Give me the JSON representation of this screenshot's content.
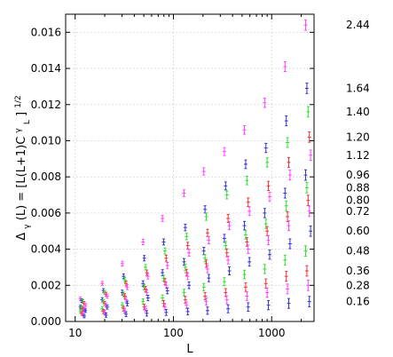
{
  "chart_data": {
    "type": "scatter",
    "title": "",
    "xlabel": "L",
    "ylabel_parts": {
      "main": "Δ",
      "sub1": "γ",
      "mid": "(L) = [L(L+1)C",
      "sup2": "γ",
      "sub2": "L",
      "close": "]",
      "sup3": "1/2"
    },
    "x_scale": "log",
    "xlim": [
      8,
      2700
    ],
    "ylim": [
      0,
      0.017
    ],
    "grid": true,
    "x_ticks": [
      {
        "value": 10,
        "label": "10"
      },
      {
        "value": 100,
        "label": "100"
      },
      {
        "value": 1000,
        "label": "1000"
      }
    ],
    "y_ticks": [
      {
        "value": 0,
        "label": "0.000"
      },
      {
        "value": 0.002,
        "label": "0.002"
      },
      {
        "value": 0.004,
        "label": "0.004"
      },
      {
        "value": 0.006,
        "label": "0.006"
      },
      {
        "value": 0.008,
        "label": "0.008"
      },
      {
        "value": 0.01,
        "label": "0.010"
      },
      {
        "value": 0.012,
        "label": "0.012"
      },
      {
        "value": 0.014,
        "label": "0.014"
      },
      {
        "value": 0.016,
        "label": "0.016"
      }
    ],
    "series": [
      {
        "name": "2.44",
        "color": "#ff44ff",
        "label_y": 0.0164,
        "x": [
          12,
          20,
          32,
          52,
          82,
          136,
          216,
          350,
          560,
          900,
          1450,
          2350
        ],
        "y": [
          0.00125,
          0.0021,
          0.0032,
          0.0044,
          0.0057,
          0.0071,
          0.0083,
          0.0094,
          0.0106,
          0.0121,
          0.0141,
          0.0164
        ]
      },
      {
        "name": "1.64",
        "color": "#3333cc",
        "label_y": 0.0129,
        "x": [
          12,
          20,
          32,
          52,
          82,
          136,
          216,
          350,
          560,
          900,
          1450,
          2350
        ],
        "y": [
          0.00115,
          0.0017,
          0.0025,
          0.0035,
          0.0044,
          0.0052,
          0.0062,
          0.0075,
          0.0087,
          0.0096,
          0.0111,
          0.0129
        ]
      },
      {
        "name": "1.40",
        "color": "#33dd33",
        "label_y": 0.0116,
        "x": [
          12,
          20,
          32,
          52,
          82,
          136,
          216,
          350,
          560,
          900,
          1450,
          2350
        ],
        "y": [
          0.0011,
          0.0016,
          0.0023,
          0.003,
          0.0039,
          0.0047,
          0.0058,
          0.007,
          0.0078,
          0.0088,
          0.0099,
          0.0116
        ]
      },
      {
        "name": "1.20",
        "color": "#ee3333",
        "label_y": 0.0102,
        "x": [
          12,
          20,
          32,
          52,
          82,
          136,
          216,
          350,
          560,
          900,
          1450,
          2350
        ],
        "y": [
          0.001,
          0.0015,
          0.0021,
          0.0027,
          0.0035,
          0.0042,
          0.0049,
          0.0057,
          0.0066,
          0.0075,
          0.0088,
          0.0102
        ]
      },
      {
        "name": "1.12",
        "color": "#ff44ff",
        "label_y": 0.0092,
        "x": [
          12,
          20,
          32,
          52,
          82,
          136,
          216,
          350,
          560,
          900,
          1450,
          2350
        ],
        "y": [
          0.0009,
          0.0014,
          0.0019,
          0.0025,
          0.0031,
          0.0038,
          0.0045,
          0.0053,
          0.0061,
          0.0069,
          0.0081,
          0.0092
        ]
      },
      {
        "name": "0.96",
        "color": "#3333cc",
        "label_y": 0.0081,
        "x": [
          12,
          20,
          32,
          52,
          82,
          136,
          216,
          350,
          560,
          900,
          1450,
          2350
        ],
        "y": [
          0.0008,
          0.0012,
          0.0016,
          0.0021,
          0.0027,
          0.0033,
          0.0039,
          0.0046,
          0.0053,
          0.006,
          0.0071,
          0.0081
        ]
      },
      {
        "name": "0.88",
        "color": "#33dd33",
        "label_y": 0.0074,
        "x": [
          12,
          20,
          32,
          52,
          82,
          136,
          216,
          350,
          560,
          900,
          1450,
          2350
        ],
        "y": [
          0.00075,
          0.0011,
          0.0015,
          0.0019,
          0.0024,
          0.003,
          0.0035,
          0.0042,
          0.0048,
          0.0054,
          0.0064,
          0.0074
        ]
      },
      {
        "name": "0.80",
        "color": "#ee3333",
        "label_y": 0.0067,
        "x": [
          12,
          20,
          32,
          52,
          82,
          136,
          216,
          350,
          560,
          900,
          1450,
          2350
        ],
        "y": [
          0.0007,
          0.001,
          0.0014,
          0.0018,
          0.0022,
          0.0027,
          0.0032,
          0.0038,
          0.0044,
          0.005,
          0.0058,
          0.0067
        ]
      },
      {
        "name": "0.72",
        "color": "#ff44ff",
        "label_y": 0.0061,
        "x": [
          12,
          20,
          32,
          52,
          82,
          136,
          216,
          350,
          560,
          900,
          1450,
          2350
        ],
        "y": [
          0.00065,
          0.0009,
          0.0012,
          0.0016,
          0.002,
          0.0025,
          0.0029,
          0.0034,
          0.004,
          0.0045,
          0.0053,
          0.0061
        ]
      },
      {
        "name": "0.60",
        "color": "#3333cc",
        "label_y": 0.005,
        "x": [
          12,
          20,
          32,
          52,
          82,
          136,
          216,
          350,
          560,
          900,
          1450,
          2350
        ],
        "y": [
          0.0006,
          0.0008,
          0.001,
          0.0013,
          0.0017,
          0.002,
          0.0024,
          0.0028,
          0.0033,
          0.0037,
          0.0043,
          0.005
        ]
      },
      {
        "name": "0.48",
        "color": "#33dd33",
        "label_y": 0.0039,
        "x": [
          12,
          20,
          32,
          52,
          82,
          136,
          216,
          350,
          560,
          900,
          1450,
          2350
        ],
        "y": [
          0.00055,
          0.0007,
          0.0009,
          0.0011,
          0.0013,
          0.0016,
          0.0019,
          0.0022,
          0.0026,
          0.0029,
          0.0034,
          0.0039
        ]
      },
      {
        "name": "0.36",
        "color": "#ee3333",
        "label_y": 0.0028,
        "x": [
          12,
          20,
          32,
          52,
          82,
          136,
          216,
          350,
          560,
          900,
          1450,
          2350
        ],
        "y": [
          0.00045,
          0.00055,
          0.0007,
          0.0008,
          0.001,
          0.0012,
          0.0014,
          0.0016,
          0.0019,
          0.0021,
          0.0025,
          0.0028
        ]
      },
      {
        "name": "0.28",
        "color": "#ff44ff",
        "label_y": 0.002,
        "x": [
          12,
          20,
          32,
          52,
          82,
          136,
          216,
          350,
          560,
          900,
          1450,
          2350
        ],
        "y": [
          0.0004,
          0.0005,
          0.0006,
          0.0007,
          0.0008,
          0.0009,
          0.0011,
          0.0012,
          0.0014,
          0.0016,
          0.0018,
          0.002
        ]
      },
      {
        "name": "0.16",
        "color": "#3333cc",
        "label_y": 0.0011,
        "x": [
          12,
          20,
          32,
          52,
          82,
          136,
          216,
          350,
          560,
          900,
          1450,
          2350
        ],
        "y": [
          0.0003,
          0.00035,
          0.0004,
          0.00045,
          0.0005,
          0.00055,
          0.0006,
          0.0007,
          0.0008,
          0.0009,
          0.001,
          0.0011
        ]
      }
    ]
  }
}
